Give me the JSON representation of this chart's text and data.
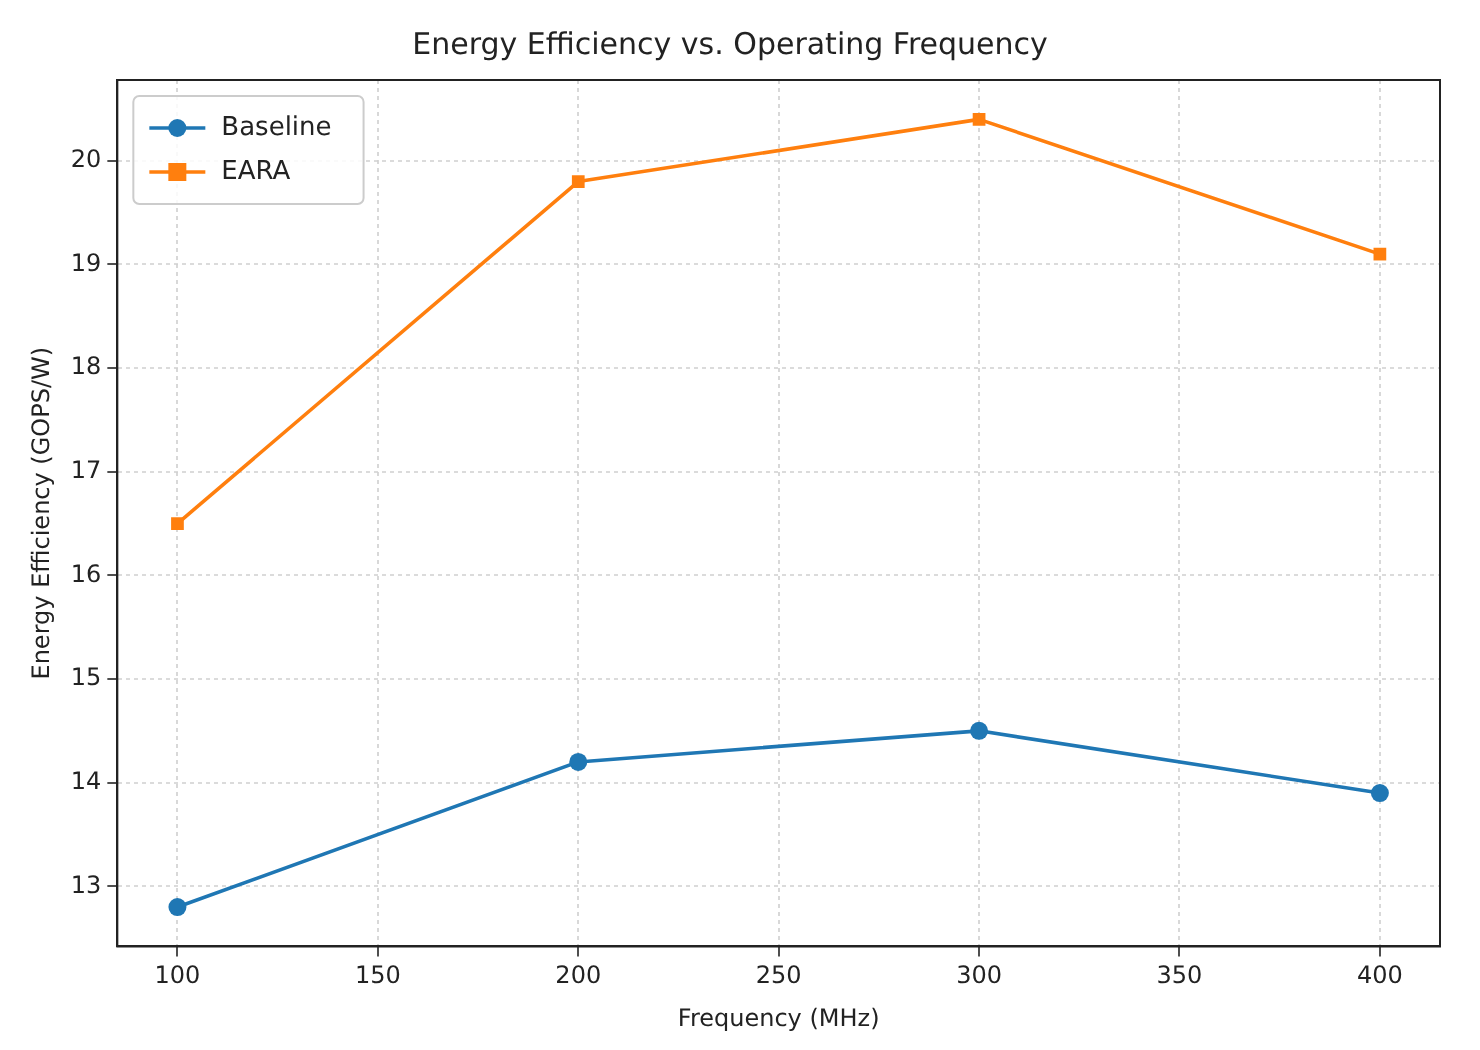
{
  "chart_data": {
    "type": "line",
    "title": "Energy Efficiency vs. Operating Frequency",
    "xlabel": "Frequency (MHz)",
    "ylabel": "Energy Efficiency (GOPS/W)",
    "x": [
      100,
      200,
      300,
      400
    ],
    "series": [
      {
        "name": "Baseline",
        "color": "#1f77b4",
        "marker": "circle",
        "values": [
          12.8,
          14.2,
          14.5,
          13.9
        ]
      },
      {
        "name": "EARA",
        "color": "#ff7f0e",
        "marker": "square",
        "values": [
          16.5,
          19.8,
          20.4,
          19.1
        ]
      }
    ],
    "xlim": [
      85,
      415
    ],
    "xticks": [
      100,
      150,
      200,
      250,
      300,
      350,
      400
    ],
    "ylim": [
      12.42,
      20.78
    ],
    "yticks": [
      13,
      14,
      15,
      16,
      17,
      18,
      19,
      20
    ],
    "grid": true,
    "legend": "top left",
    "line_style": "solid"
  }
}
